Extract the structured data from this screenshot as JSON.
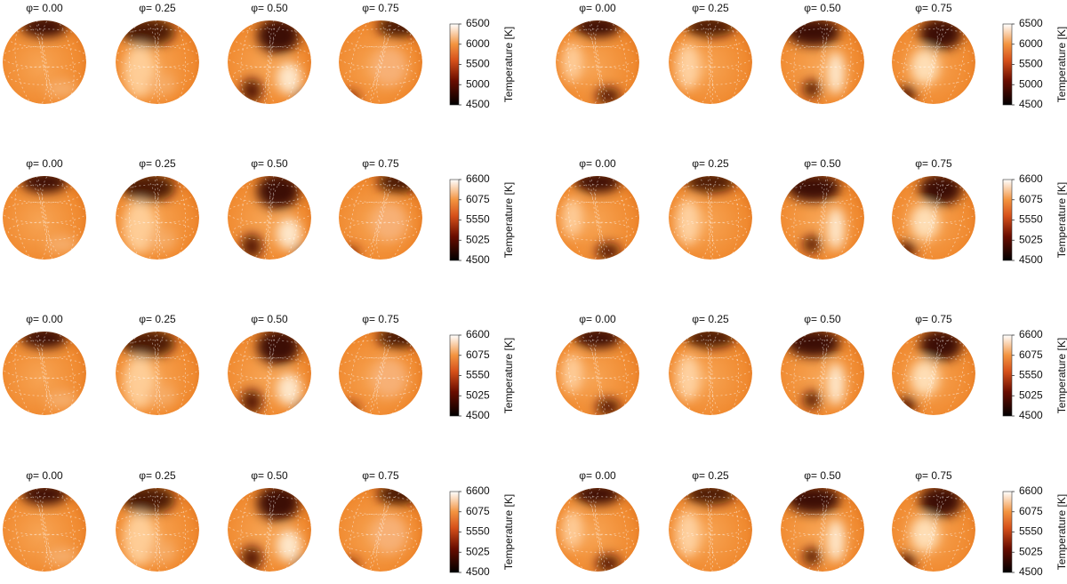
{
  "chart_data": [
    {
      "type": "surface-map",
      "phases": [
        "φ= 0.00",
        "φ= 0.25",
        "φ= 0.50",
        "φ= 0.75"
      ],
      "colorbar": {
        "label": "Temperature [K]",
        "lim": [
          4500,
          6500
        ],
        "ticks": [
          4500,
          5000,
          5500,
          6000,
          6500
        ]
      }
    },
    {
      "type": "surface-map",
      "phases": [
        "φ= 0.00",
        "φ= 0.25",
        "φ= 0.50",
        "φ= 0.75"
      ],
      "colorbar": {
        "label": "Temperature [K]",
        "lim": [
          4500,
          6500
        ],
        "ticks": [
          4500,
          5000,
          5500,
          6000,
          6500
        ]
      }
    },
    {
      "type": "surface-map",
      "phases": [
        "φ= 0.00",
        "φ= 0.25",
        "φ= 0.50",
        "φ= 0.75"
      ],
      "colorbar": {
        "label": "Temperature [K]",
        "lim": [
          4500,
          6600
        ],
        "ticks": [
          4500,
          5025,
          5550,
          6075,
          6600
        ]
      }
    },
    {
      "type": "surface-map",
      "phases": [
        "φ= 0.00",
        "φ= 0.25",
        "φ= 0.50",
        "φ= 0.75"
      ],
      "colorbar": {
        "label": "Temperature [K]",
        "lim": [
          4500,
          6600
        ],
        "ticks": [
          4500,
          5025,
          5550,
          6075,
          6600
        ]
      }
    },
    {
      "type": "surface-map",
      "phases": [
        "φ= 0.00",
        "φ= 0.25",
        "φ= 0.50",
        "φ= 0.75"
      ],
      "colorbar": {
        "label": "Temperature [K]",
        "lim": [
          4500,
          6600
        ],
        "ticks": [
          4500,
          5025,
          5550,
          6075,
          6600
        ]
      }
    },
    {
      "type": "surface-map",
      "phases": [
        "φ= 0.00",
        "φ= 0.25",
        "φ= 0.50",
        "φ= 0.75"
      ],
      "colorbar": {
        "label": "Temperature [K]",
        "lim": [
          4500,
          6600
        ],
        "ticks": [
          4500,
          5025,
          5550,
          6075,
          6600
        ]
      }
    },
    {
      "type": "surface-map",
      "phases": [
        "φ= 0.00",
        "φ= 0.25",
        "φ= 0.50",
        "φ= 0.75"
      ],
      "colorbar": {
        "label": "Temperature [K]",
        "lim": [
          4500,
          6600
        ],
        "ticks": [
          4500,
          5025,
          5550,
          6075,
          6600
        ]
      }
    },
    {
      "type": "surface-map",
      "phases": [
        "φ= 0.00",
        "φ= 0.25",
        "φ= 0.50",
        "φ= 0.75"
      ],
      "colorbar": {
        "label": "Temperature [K]",
        "lim": [
          4500,
          6600
        ],
        "ticks": [
          4500,
          5025,
          5550,
          6075,
          6600
        ]
      }
    }
  ]
}
